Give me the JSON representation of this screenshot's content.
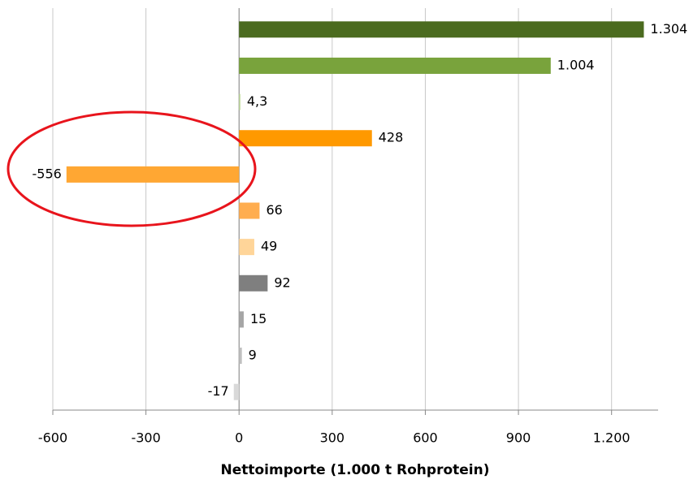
{
  "chart_data": {
    "type": "hbar",
    "x_label": "Nettoimporte (1.000 t Rohprotein)",
    "categories": [
      null,
      null,
      null,
      null,
      null,
      null,
      null,
      null,
      null,
      null,
      null
    ],
    "values": [
      1304,
      1004,
      4.3,
      428,
      -556,
      66,
      49,
      92,
      15,
      9,
      -17
    ],
    "value_labels": [
      "1.304",
      "1.004",
      "4,3",
      "428",
      "-556",
      "66",
      "49",
      "92",
      "15",
      "9",
      "-17"
    ],
    "colors": [
      "#4b6b1f",
      "#79a33c",
      "#c3dba0",
      "#ff9900",
      "#ffa733",
      "#ffad4f",
      "#ffd599",
      "#7f7f7f",
      "#a6a6a6",
      "#bfbfbf",
      "#d9d9d9"
    ],
    "xlim": [
      -600,
      1350
    ],
    "xticks": [
      -600,
      -300,
      0,
      300,
      600,
      900,
      {
        "value": 1200,
        "label": "1.200"
      }
    ],
    "grid": true
  }
}
